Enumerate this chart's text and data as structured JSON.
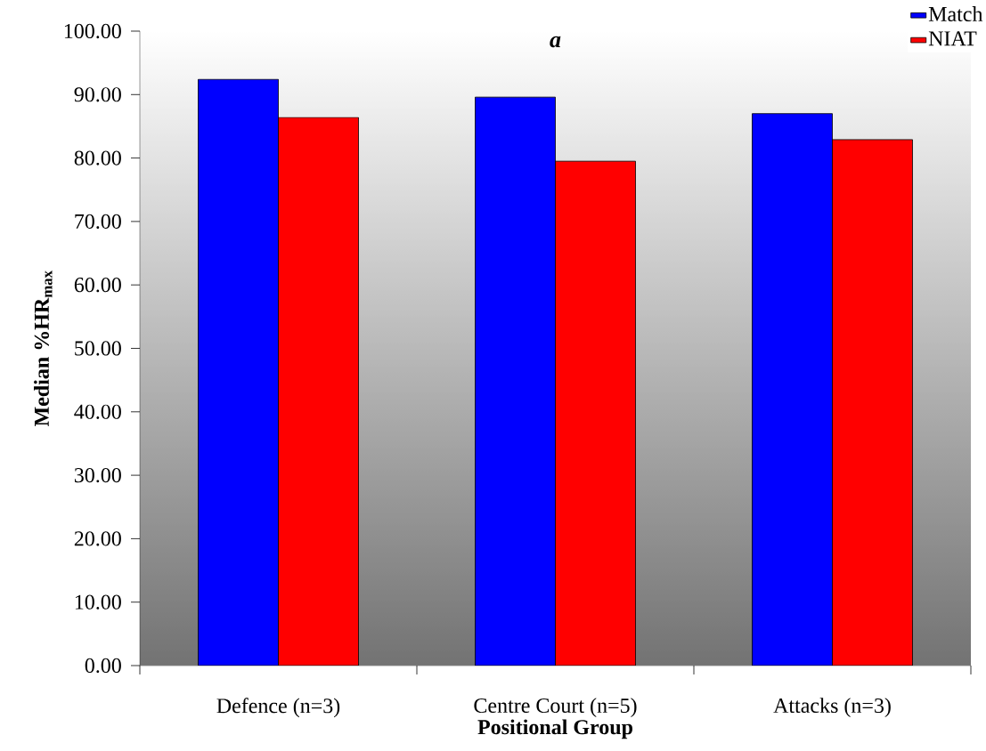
{
  "chart_data": {
    "type": "bar",
    "title": "a",
    "xlabel": "Positional Group",
    "ylabel": "Median %HR$_{max}$",
    "categories": [
      "Defence (n=3)",
      "Centre Court (n=5)",
      "Attacks (n=3)"
    ],
    "series": [
      {
        "name": "Match",
        "color": "#0000ff",
        "values": [
          92.4,
          89.6,
          87.0
        ]
      },
      {
        "name": "NIAT",
        "color": "#ff0000",
        "values": [
          86.4,
          79.5,
          82.9
        ]
      }
    ],
    "ylim": [
      0,
      100
    ],
    "yticks": [
      {
        "value": 0,
        "label": "0.00"
      },
      {
        "value": 10,
        "label": "10.00"
      },
      {
        "value": 20,
        "label": "20.00"
      },
      {
        "value": 30,
        "label": "30.00"
      },
      {
        "value": 40,
        "label": "40.00"
      },
      {
        "value": 50,
        "label": "50.00"
      },
      {
        "value": 60,
        "label": "60.00"
      },
      {
        "value": 70,
        "label": "70.00"
      },
      {
        "value": 80,
        "label": "80.00"
      },
      {
        "value": 90,
        "label": "90.00"
      },
      {
        "value": 100,
        "label": "100.00"
      }
    ],
    "grid": false,
    "legend": "top right"
  }
}
